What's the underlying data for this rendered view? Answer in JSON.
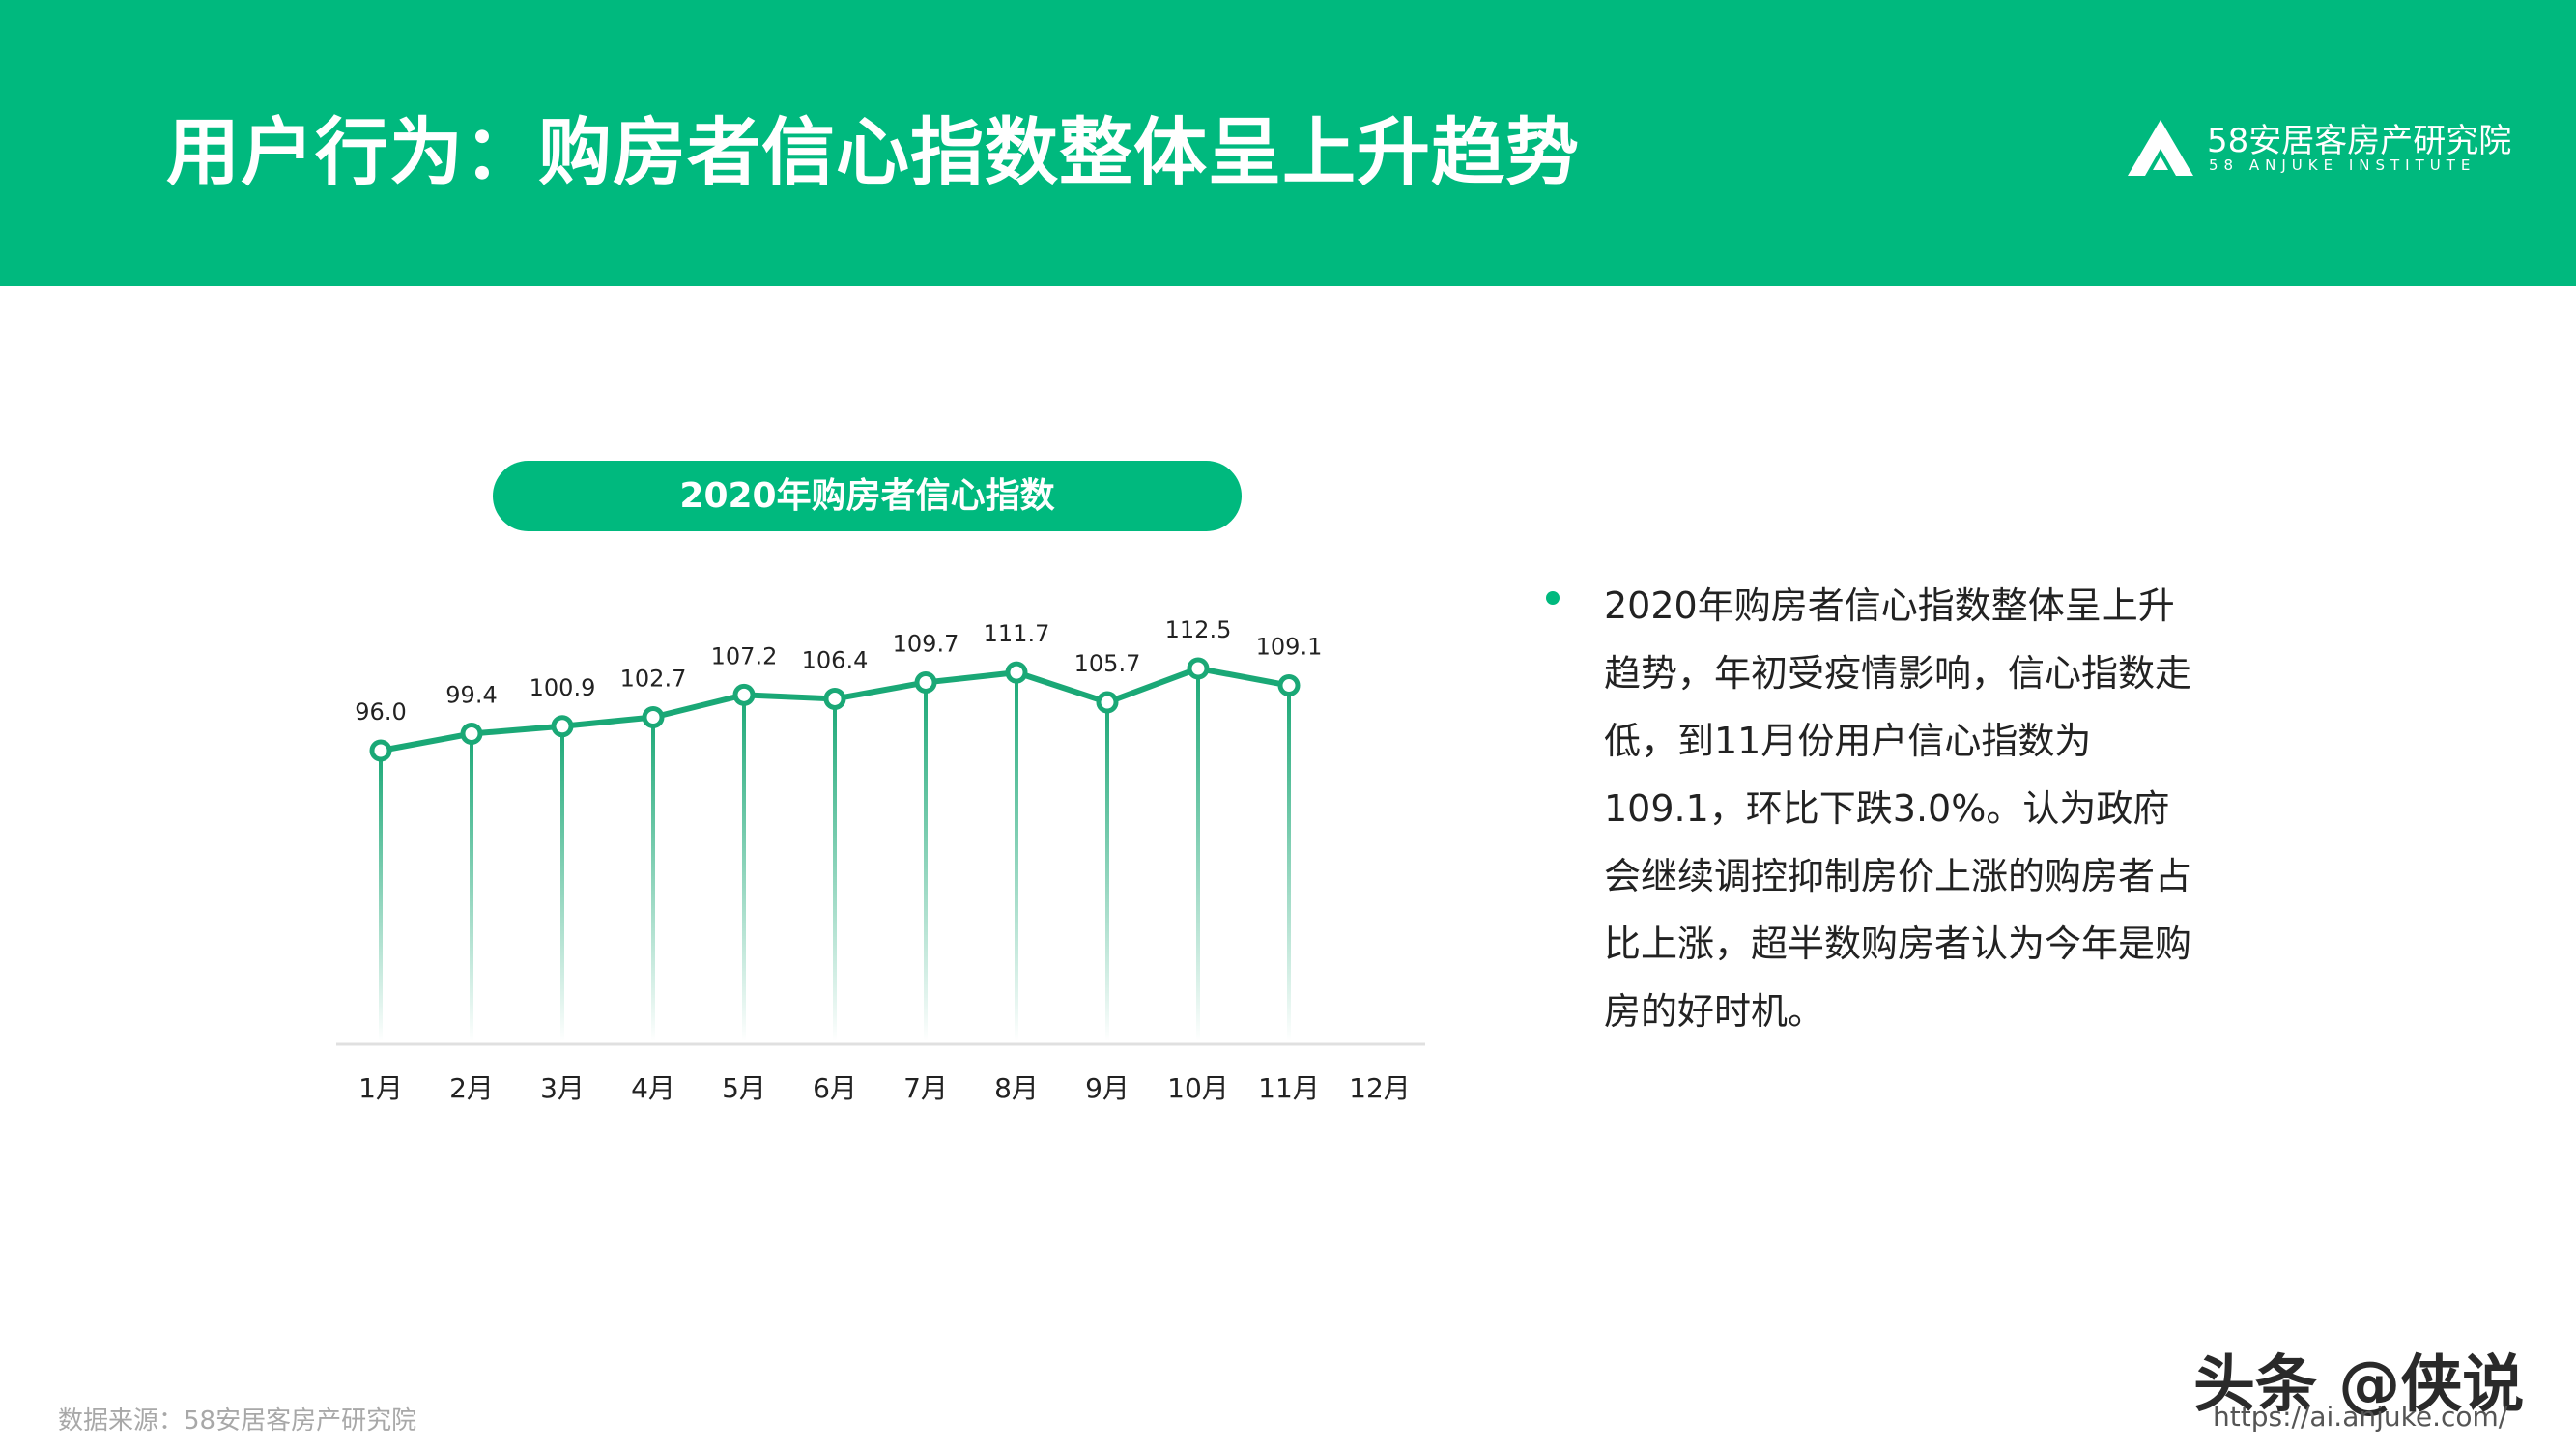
{
  "header": {
    "title": "用户行为：购房者信心指数整体呈上升趋势",
    "logo_name": "58安居客房产研究院",
    "logo_sub": "58 ANJUKE INSTITUTE"
  },
  "chart_title": "2020年购房者信心指数",
  "chart_data": {
    "type": "line",
    "title": "2020年购房者信心指数",
    "categories": [
      "1月",
      "2月",
      "3月",
      "4月",
      "5月",
      "6月",
      "7月",
      "8月",
      "9月",
      "10月",
      "11月",
      "12月"
    ],
    "series": [
      {
        "values": [
          96.0,
          99.4,
          100.9,
          102.7,
          107.2,
          106.4,
          109.7,
          111.7,
          105.7,
          112.5,
          109.1,
          null
        ]
      }
    ],
    "data_labels": [
      "96.0",
      "99.4",
      "100.9",
      "102.7",
      "107.2",
      "106.4",
      "109.7",
      "111.7",
      "105.7",
      "112.5",
      "109.1"
    ],
    "grid": false,
    "color": "#1aa876"
  },
  "description": "2020年购房者信心指数整体呈上升趋势，年初受疫情影响，信心指数走低，到11月份用户信心指数为109.1，环比下跌3.0%。认为政府会继续调控抑制房价上涨的购房者占比上涨，超半数购房者认为今年是购房的好时机。",
  "source": "数据来源：58安居客房产研究院",
  "watermark": "头条 @侠说",
  "url": "https://ai.anjuke.com/",
  "colors": {
    "brand": "#00b97e",
    "line": "#1aa876"
  }
}
